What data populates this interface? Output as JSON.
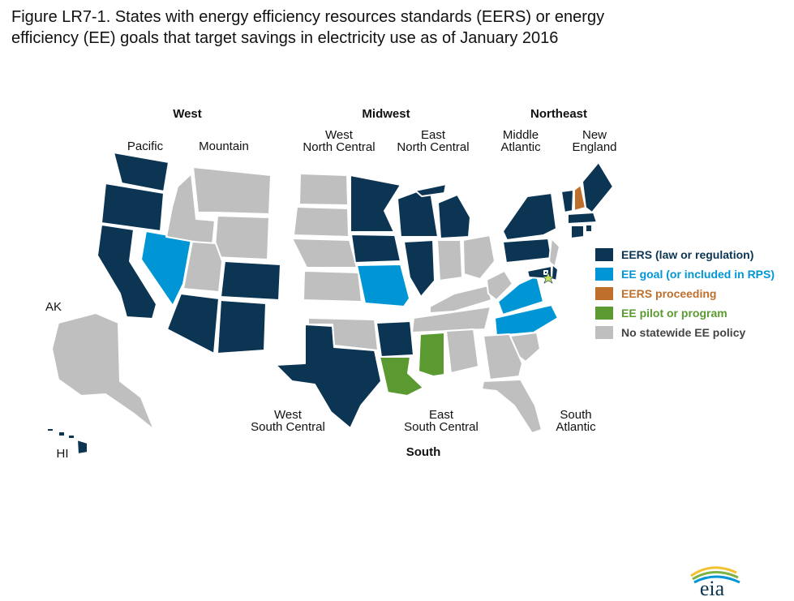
{
  "title": {
    "line1": "Figure LR7-1. States with energy efficiency resources standards (EERS) or energy",
    "line2": "efficiency (EE) goals that target savings in electricity use as of January 2016"
  },
  "regions": {
    "west": "West",
    "midwest": "Midwest",
    "northeast": "Northeast",
    "south": "South"
  },
  "divisions": {
    "pacific": "Pacific",
    "mountain": "Mountain",
    "wnc": [
      "West",
      "North Central"
    ],
    "enc": [
      "East",
      "North Central"
    ],
    "midatl": [
      "Middle",
      "Atlantic"
    ],
    "ne": [
      "New",
      "England"
    ],
    "wsc": [
      "West",
      "South Central"
    ],
    "esc": [
      "East",
      "South Central"
    ],
    "sa": [
      "South",
      "Atlantic"
    ],
    "ak": "AK",
    "hi": "HI"
  },
  "legend": [
    {
      "label": "EERS (law or regulation)",
      "color": "#0b3552",
      "category": "eers"
    },
    {
      "label": "EE goal (or included in RPS)",
      "color": "#0096d6",
      "category": "goal"
    },
    {
      "label": "EERS proceeding",
      "color": "#bf6f2c",
      "category": "proceeding"
    },
    {
      "label": "EE pilot or program",
      "color": "#5a9a31",
      "category": "pilot"
    },
    {
      "label": "No statewide EE policy",
      "color": "#bfbfbf",
      "category": "none"
    }
  ],
  "states": {
    "WA": "eers",
    "OR": "eers",
    "CA": "eers",
    "NV": "goal",
    "ID": "none",
    "MT": "none",
    "WY": "none",
    "UT": "none",
    "CO": "eers",
    "AZ": "eers",
    "NM": "eers",
    "ND": "none",
    "SD": "none",
    "NE": "none",
    "KS": "none",
    "MN": "eers",
    "IA": "eers",
    "MO": "goal",
    "WI": "eers",
    "IL": "eers",
    "MI": "eers",
    "IN": "none",
    "OH": "none",
    "NY": "eers",
    "PA": "eers",
    "NJ": "none",
    "VT": "eers",
    "NH": "proceeding",
    "ME": "eers",
    "MA": "eers",
    "RI": "eers",
    "CT": "eers",
    "TX": "eers",
    "OK": "none",
    "AR": "eers",
    "LA": "pilot",
    "KY": "none",
    "TN": "none",
    "MS": "pilot",
    "AL": "none",
    "WV": "none",
    "VA": "goal",
    "NC": "goal",
    "SC": "none",
    "GA": "none",
    "FL": "none",
    "MD": "eers",
    "DE": "eers",
    "DC": "eers",
    "AK": "none",
    "HI": "eers"
  },
  "logo": {
    "text": "eia"
  }
}
